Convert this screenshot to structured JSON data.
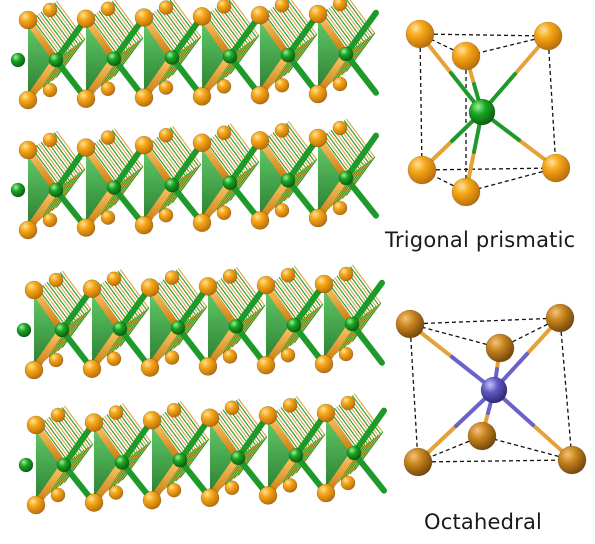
{
  "captions": {
    "trigonal_prismatic": "Trigonal prismatic",
    "octahedral": "Octahedral"
  },
  "colors": {
    "chalcogen_atom": "#f29a0e",
    "chalcogen_atom_dark": "#b8731a",
    "metal_atom_green": "#159a1e",
    "metal_atom_blue": "#5a52b8",
    "bond_green": "#1e9a2a",
    "bond_orange": "#e6a23a",
    "bond_blue": "#6a62c8",
    "dashed_edge": "#111111"
  },
  "icons": {
    "layer_structures": "layered-crystal-structure",
    "trigonal_prismatic": "trigonal-prismatic-coordination",
    "octahedral": "octahedral-coordination"
  }
}
